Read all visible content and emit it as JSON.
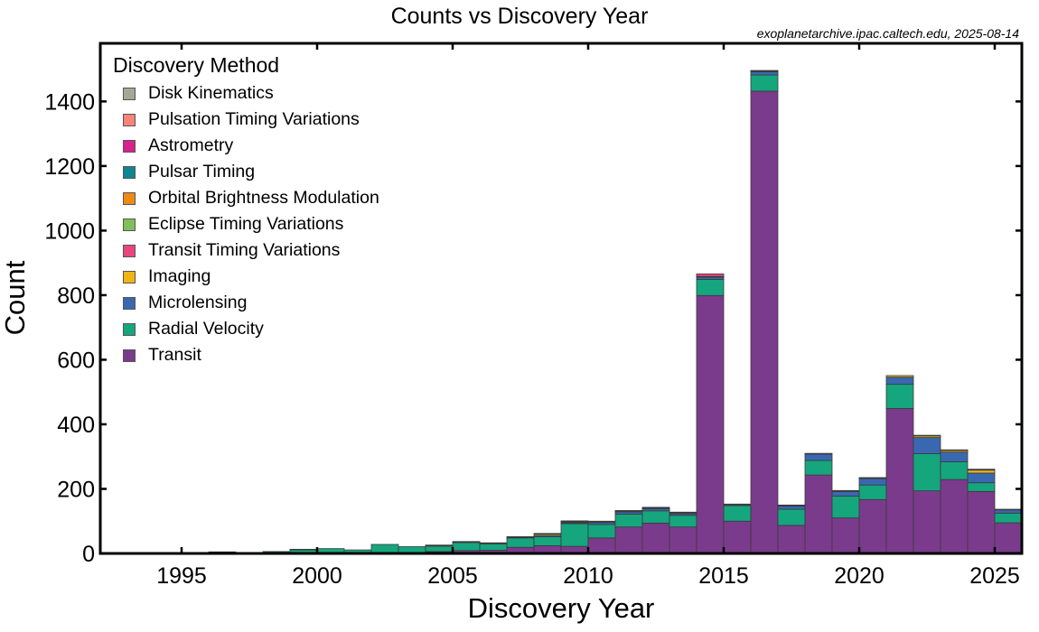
{
  "chart_data": {
    "type": "bar",
    "stacked": true,
    "title": "Counts vs Discovery Year",
    "source_note": "exoplanetarchive.ipac.caltech.edu, 2025-08-14",
    "xlabel": "Discovery Year",
    "ylabel": "Count",
    "xlim": [
      1992,
      2026
    ],
    "ylim": [
      0,
      1580
    ],
    "x_ticks": [
      1995,
      2000,
      2005,
      2010,
      2015,
      2020,
      2025
    ],
    "y_ticks": [
      0,
      200,
      400,
      600,
      800,
      1000,
      1200,
      1400
    ],
    "grid": false,
    "legend_title": "Discovery Method",
    "legend_placement": "top-left",
    "categories": [
      1992,
      1993,
      1994,
      1995,
      1996,
      1997,
      1998,
      1999,
      2000,
      2001,
      2002,
      2003,
      2004,
      2005,
      2006,
      2007,
      2008,
      2009,
      2010,
      2011,
      2012,
      2013,
      2014,
      2015,
      2016,
      2017,
      2018,
      2019,
      2020,
      2021,
      2022,
      2023,
      2024,
      2025
    ],
    "series": [
      {
        "name": "Transit",
        "color": "#7b3b8c",
        "values": [
          0,
          0,
          0,
          0,
          0,
          0,
          0,
          0,
          0,
          0,
          1,
          1,
          6,
          9,
          10,
          19,
          24,
          22,
          48,
          82,
          94,
          82,
          799,
          100,
          1432,
          87,
          243,
          110,
          167,
          449,
          194,
          229,
          192,
          95
        ]
      },
      {
        "name": "Radial Velocity",
        "color": "#15a67e",
        "values": [
          0,
          0,
          0,
          1,
          5,
          1,
          6,
          12,
          15,
          11,
          27,
          20,
          17,
          25,
          20,
          30,
          28,
          70,
          42,
          40,
          38,
          36,
          50,
          48,
          50,
          50,
          45,
          68,
          45,
          75,
          115,
          55,
          27,
          30
        ]
      },
      {
        "name": "Microlensing",
        "color": "#3a68b0",
        "values": [
          0,
          0,
          0,
          0,
          0,
          0,
          0,
          0,
          0,
          0,
          0,
          0,
          2,
          2,
          2,
          1,
          4,
          3,
          6,
          7,
          7,
          5,
          7,
          3,
          10,
          10,
          20,
          14,
          20,
          22,
          50,
          30,
          30,
          10
        ]
      },
      {
        "name": "Imaging",
        "color": "#f1b416",
        "values": [
          0,
          0,
          0,
          0,
          0,
          0,
          0,
          0,
          0,
          0,
          0,
          0,
          1,
          1,
          1,
          2,
          5,
          2,
          3,
          2,
          2,
          3,
          2,
          2,
          2,
          2,
          2,
          2,
          2,
          5,
          6,
          6,
          10,
          2
        ]
      },
      {
        "name": "Transit Timing Variations",
        "color": "#e8467c",
        "values": [
          0,
          0,
          0,
          0,
          0,
          0,
          0,
          0,
          0,
          0,
          0,
          0,
          0,
          0,
          0,
          0,
          0,
          0,
          0,
          0,
          1,
          0,
          8,
          0,
          0,
          1,
          0,
          1,
          1,
          0,
          0,
          0,
          0,
          0
        ]
      },
      {
        "name": "Eclipse Timing Variations",
        "color": "#80bf5a",
        "values": [
          0,
          0,
          0,
          0,
          0,
          0,
          0,
          0,
          0,
          0,
          0,
          0,
          0,
          0,
          0,
          0,
          0,
          2,
          1,
          1,
          0,
          1,
          0,
          0,
          0,
          0,
          0,
          0,
          0,
          0,
          0,
          0,
          0,
          0
        ]
      },
      {
        "name": "Orbital Brightness Modulation",
        "color": "#ee8a16",
        "values": [
          0,
          0,
          0,
          0,
          0,
          0,
          0,
          0,
          0,
          0,
          0,
          0,
          0,
          0,
          0,
          0,
          1,
          2,
          0,
          0,
          1,
          0,
          0,
          0,
          1,
          0,
          0,
          0,
          0,
          0,
          0,
          0,
          0,
          0
        ]
      },
      {
        "name": "Pulsar Timing",
        "color": "#0e8592",
        "values": [
          2,
          1,
          0,
          0,
          0,
          0,
          0,
          0,
          0,
          0,
          0,
          0,
          0,
          0,
          0,
          0,
          0,
          0,
          0,
          1,
          0,
          0,
          0,
          0,
          0,
          0,
          0,
          0,
          0,
          0,
          0,
          0,
          0,
          0
        ]
      },
      {
        "name": "Astrometry",
        "color": "#d8208e",
        "values": [
          0,
          0,
          0,
          0,
          0,
          0,
          0,
          0,
          0,
          0,
          0,
          0,
          0,
          0,
          0,
          0,
          0,
          0,
          0,
          0,
          0,
          1,
          0,
          0,
          0,
          0,
          0,
          0,
          0,
          0,
          1,
          1,
          1,
          0
        ]
      },
      {
        "name": "Pulsation Timing Variations",
        "color": "#f88379",
        "values": [
          0,
          0,
          0,
          0,
          0,
          0,
          0,
          1,
          0,
          0,
          0,
          0,
          0,
          0,
          0,
          0,
          0,
          0,
          0,
          0,
          0,
          0,
          0,
          0,
          1,
          0,
          0,
          0,
          0,
          0,
          0,
          0,
          0,
          0
        ]
      },
      {
        "name": "Disk Kinematics",
        "color": "#a6a796",
        "values": [
          0,
          0,
          0,
          0,
          0,
          0,
          0,
          0,
          0,
          0,
          0,
          0,
          0,
          0,
          0,
          0,
          0,
          0,
          0,
          0,
          0,
          0,
          0,
          0,
          0,
          0,
          0,
          0,
          0,
          0,
          0,
          0,
          1,
          0
        ]
      }
    ]
  }
}
